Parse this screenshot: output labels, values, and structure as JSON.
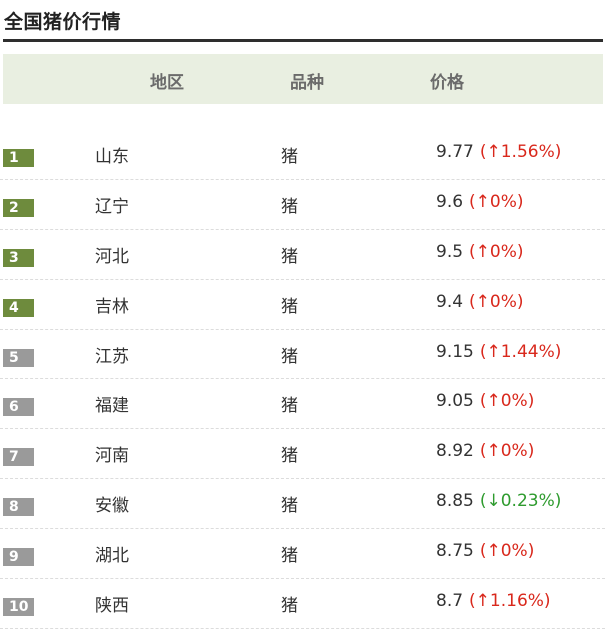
{
  "title": "全国猪价行情",
  "header": {
    "region": "地区",
    "variety": "品种",
    "price": "价格"
  },
  "rows": [
    {
      "rank": "1",
      "region": "山东",
      "variety": "猪",
      "price": "9.77",
      "change": "(↑1.56%)",
      "dir": "up",
      "rank_style": "top"
    },
    {
      "rank": "2",
      "region": "辽宁",
      "variety": "猪",
      "price": "9.6",
      "change": "(↑0%)",
      "dir": "up",
      "rank_style": "top"
    },
    {
      "rank": "3",
      "region": "河北",
      "variety": "猪",
      "price": "9.5",
      "change": "(↑0%)",
      "dir": "up",
      "rank_style": "top"
    },
    {
      "rank": "4",
      "region": "吉林",
      "variety": "猪",
      "price": "9.4",
      "change": "(↑0%)",
      "dir": "up",
      "rank_style": "top"
    },
    {
      "rank": "5",
      "region": "江苏",
      "variety": "猪",
      "price": "9.15",
      "change": "(↑1.44%)",
      "dir": "up",
      "rank_style": "rest"
    },
    {
      "rank": "6",
      "region": "福建",
      "variety": "猪",
      "price": "9.05",
      "change": "(↑0%)",
      "dir": "up",
      "rank_style": "rest"
    },
    {
      "rank": "7",
      "region": "河南",
      "variety": "猪",
      "price": "8.92",
      "change": "(↑0%)",
      "dir": "up",
      "rank_style": "rest"
    },
    {
      "rank": "8",
      "region": "安徽",
      "variety": "猪",
      "price": "8.85",
      "change": "(↓0.23%)",
      "dir": "down",
      "rank_style": "rest"
    },
    {
      "rank": "9",
      "region": "湖北",
      "variety": "猪",
      "price": "8.75",
      "change": "(↑0%)",
      "dir": "up",
      "rank_style": "rest"
    },
    {
      "rank": "10",
      "region": "陕西",
      "variety": "猪",
      "price": "8.7",
      "change": "(↑1.16%)",
      "dir": "up",
      "rank_style": "rest"
    }
  ],
  "colors": {
    "up": "#d9281c",
    "down": "#2e9b2e",
    "rank_top": "#6e8b3d",
    "rank_rest": "#9a9a9a",
    "header_band": "#e9efe1"
  }
}
